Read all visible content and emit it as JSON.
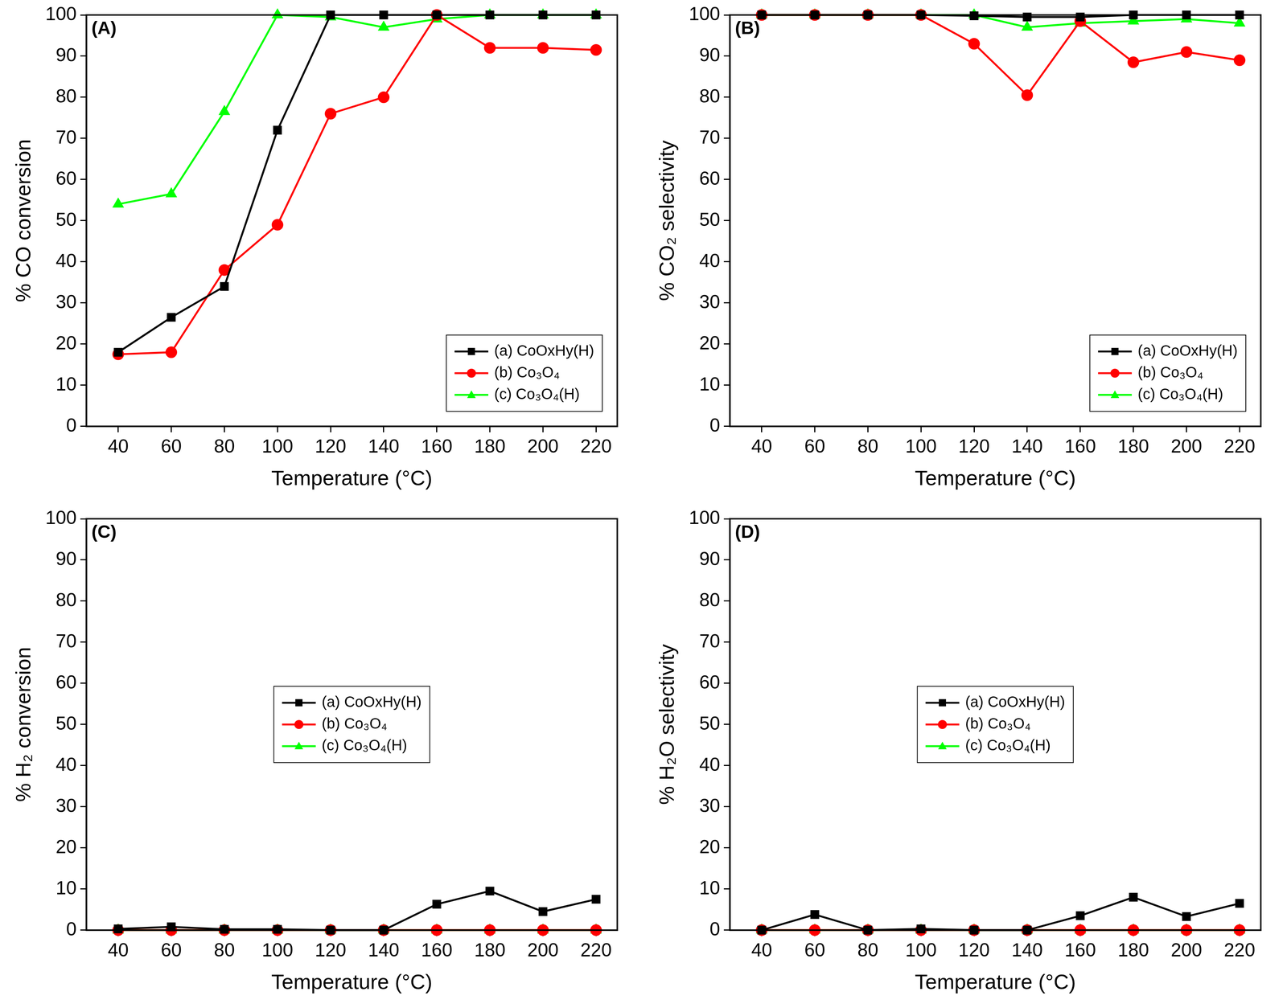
{
  "chart_data": [
    {
      "type": "line",
      "title": "(A)",
      "x_label": "Temperature (°C)",
      "y_label": "% CO conversion",
      "x": [
        40,
        60,
        80,
        100,
        120,
        140,
        160,
        180,
        200,
        220
      ],
      "series": [
        {
          "name": "(a) CoOxHy(H)",
          "color": "#000000",
          "marker": "square",
          "line_style": "solid",
          "values": [
            18,
            26.5,
            34,
            72,
            100,
            100,
            100,
            100,
            100,
            100
          ]
        },
        {
          "name": "(b) Co₃O₄",
          "color": "#ff0000",
          "marker": "circle",
          "line_style": "solid",
          "values": [
            17.5,
            18,
            38,
            49,
            76,
            80,
            100,
            92,
            92,
            91.5
          ]
        },
        {
          "name": "(c) Co₃O₄(H)",
          "color": "#00ff00",
          "marker": "triangle",
          "line_style": "solid",
          "values": [
            54,
            56.5,
            76.5,
            100,
            99.5,
            97,
            99,
            100,
            100,
            100
          ]
        }
      ],
      "xlim": [
        28,
        228
      ],
      "xticks": [
        40,
        60,
        80,
        100,
        120,
        140,
        160,
        180,
        200,
        220
      ],
      "ylim": [
        0,
        100
      ],
      "yticks": [
        0,
        10,
        20,
        30,
        40,
        50,
        60,
        70,
        80,
        90,
        100
      ],
      "grid": false,
      "legend": "lower right"
    },
    {
      "type": "line",
      "title": "(B)",
      "x_label": "Temperature (°C)",
      "y_label": "% CO₂ selectivity",
      "x": [
        40,
        60,
        80,
        100,
        120,
        140,
        160,
        180,
        200,
        220
      ],
      "series": [
        {
          "name": "(a) CoOxHy(H)",
          "color": "#000000",
          "marker": "square",
          "line_style": "solid",
          "values": [
            100,
            100,
            100,
            100,
            99.8,
            99.5,
            99.5,
            100,
            100,
            100
          ]
        },
        {
          "name": "(b) Co₃O₄",
          "color": "#ff0000",
          "marker": "circle",
          "line_style": "solid",
          "values": [
            100,
            100,
            100,
            100,
            93,
            80.5,
            98.5,
            88.5,
            91,
            89
          ]
        },
        {
          "name": "(c) Co₃O₄(H)",
          "color": "#00ff00",
          "marker": "triangle",
          "line_style": "solid",
          "values": [
            100,
            100,
            100,
            100,
            100,
            97,
            98,
            98.5,
            99,
            98
          ]
        }
      ],
      "xlim": [
        28,
        228
      ],
      "xticks": [
        40,
        60,
        80,
        100,
        120,
        140,
        160,
        180,
        200,
        220
      ],
      "ylim": [
        0,
        100
      ],
      "yticks": [
        0,
        10,
        20,
        30,
        40,
        50,
        60,
        70,
        80,
        90,
        100
      ],
      "grid": false,
      "legend": "lower right"
    },
    {
      "type": "line",
      "title": "(C)",
      "x_label": "Temperature (°C)",
      "y_label": "% H₂ conversion",
      "x": [
        40,
        60,
        80,
        100,
        120,
        140,
        160,
        180,
        200,
        220
      ],
      "series": [
        {
          "name": "(a) CoOxHy(H)",
          "color": "#000000",
          "marker": "square",
          "line_style": "solid",
          "values": [
            0.3,
            0.8,
            0.2,
            0.2,
            0,
            0,
            6.3,
            9.5,
            4.5,
            7.5
          ]
        },
        {
          "name": "(b) Co₃O₄",
          "color": "#ff0000",
          "marker": "circle",
          "line_style": "solid",
          "values": [
            0,
            0,
            0,
            0,
            0,
            0,
            0,
            0,
            0,
            0
          ]
        },
        {
          "name": "(c) Co₃O₄(H)",
          "color": "#00ff00",
          "marker": "triangle",
          "line_style": "solid",
          "values": [
            0,
            0,
            0,
            0,
            0,
            0,
            0,
            0,
            0,
            0
          ]
        }
      ],
      "xlim": [
        28,
        228
      ],
      "xticks": [
        40,
        60,
        80,
        100,
        120,
        140,
        160,
        180,
        200,
        220
      ],
      "ylim": [
        0,
        100
      ],
      "yticks": [
        0,
        10,
        20,
        30,
        40,
        50,
        60,
        70,
        80,
        90,
        100
      ],
      "grid": false,
      "legend": "center"
    },
    {
      "type": "line",
      "title": "(D)",
      "x_label": "Temperature (°C)",
      "y_label": "% H₂O selectivity",
      "x": [
        40,
        60,
        80,
        100,
        120,
        140,
        160,
        180,
        200,
        220
      ],
      "series": [
        {
          "name": "(a) CoOxHy(H)",
          "color": "#000000",
          "marker": "square",
          "line_style": "solid",
          "values": [
            0,
            3.8,
            0,
            0.3,
            0,
            0,
            3.5,
            8,
            3.3,
            6.5
          ]
        },
        {
          "name": "(b) Co₃O₄",
          "color": "#ff0000",
          "marker": "circle",
          "line_style": "solid",
          "values": [
            0,
            0,
            0,
            0,
            0,
            0,
            0,
            0,
            0,
            0
          ]
        },
        {
          "name": "(c) Co₃O₄(H)",
          "color": "#00ff00",
          "marker": "triangle",
          "line_style": "solid",
          "values": [
            0,
            0,
            0,
            0,
            0,
            0,
            0,
            0,
            0,
            0
          ]
        }
      ],
      "xlim": [
        28,
        228
      ],
      "xticks": [
        40,
        60,
        80,
        100,
        120,
        140,
        160,
        180,
        200,
        220
      ],
      "ylim": [
        0,
        100
      ],
      "yticks": [
        0,
        10,
        20,
        30,
        40,
        50,
        60,
        70,
        80,
        90,
        100
      ],
      "grid": false,
      "legend": "center"
    }
  ]
}
